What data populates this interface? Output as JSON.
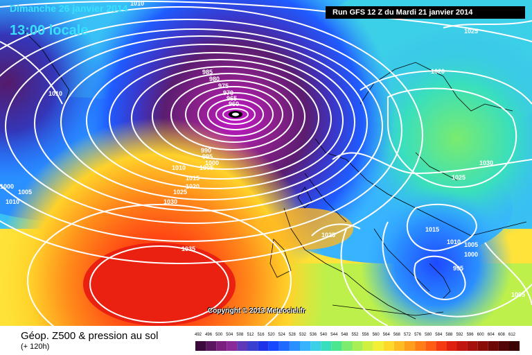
{
  "header": {
    "date_text": "Dimanche 26 janvier 2014",
    "time_text": "13:00 locale",
    "run_text": "Run GFS 12 Z du Mardi 21 janvier 2014"
  },
  "copyright": "Copyright © 2013 Meteociel.fr",
  "legend": {
    "title": "Géop. Z500 & pression au sol",
    "subtitle": "(+ 120h)",
    "scale_values": [
      "492",
      "496",
      "500",
      "504",
      "508",
      "512",
      "516",
      "520",
      "524",
      "528",
      "532",
      "536",
      "540",
      "544",
      "548",
      "552",
      "556",
      "560",
      "564",
      "568",
      "572",
      "576",
      "580",
      "584",
      "588",
      "592",
      "596",
      "600",
      "604",
      "608",
      "612"
    ],
    "scale_colors": [
      "#3b0a3a",
      "#5a1760",
      "#7a207e",
      "#8a2a98",
      "#5f3ab8",
      "#3a3fd0",
      "#1e33e8",
      "#1747ff",
      "#1f6bff",
      "#2a8fff",
      "#38b4ff",
      "#3ccfe8",
      "#39dfbd",
      "#4ae690",
      "#7ceb6e",
      "#a8ef55",
      "#d0f040",
      "#f2ef34",
      "#ffd92a",
      "#ffbb22",
      "#ff9d1c",
      "#ff7e18",
      "#ff5c14",
      "#f53a12",
      "#e0200f",
      "#c2150d",
      "#a6100b",
      "#8a0c09",
      "#6e0807",
      "#540505",
      "#3a0202"
    ]
  },
  "isobars": [
    {
      "label": "1010",
      "color": "#ffffff"
    },
    {
      "label": "1025",
      "color": "#ffffff"
    },
    {
      "label": "1010",
      "color": "#ffffff"
    },
    {
      "label": "985",
      "color": "#ffffff"
    },
    {
      "label": "980",
      "color": "#ffffff"
    },
    {
      "label": "975",
      "color": "#ffffff"
    },
    {
      "label": "970",
      "color": "#ffffff"
    },
    {
      "label": "965",
      "color": "#ffffff"
    },
    {
      "label": "960",
      "color": "#ffffff"
    },
    {
      "label": "990",
      "color": "#ffffff"
    },
    {
      "label": "995",
      "color": "#ffffff"
    },
    {
      "label": "1000",
      "color": "#ffffff"
    },
    {
      "label": "1005",
      "color": "#ffffff"
    },
    {
      "label": "1010",
      "color": "#ffffff"
    },
    {
      "label": "1015",
      "color": "#ffffff"
    },
    {
      "label": "1020",
      "color": "#ffffff"
    },
    {
      "label": "1025",
      "color": "#ffffff"
    },
    {
      "label": "1030",
      "color": "#ffffff"
    },
    {
      "label": "1005",
      "color": "#ffffff"
    },
    {
      "label": "1010",
      "color": "#ffffff"
    },
    {
      "label": "1035",
      "color": "#ffffff"
    },
    {
      "label": "1025",
      "color": "#ffffff"
    },
    {
      "label": "1020",
      "color": "#ffffff"
    },
    {
      "label": "1030",
      "color": "#ffffff"
    },
    {
      "label": "1025",
      "color": "#ffffff"
    },
    {
      "label": "1015",
      "color": "#ffffff"
    },
    {
      "label": "1010",
      "color": "#ffffff"
    },
    {
      "label": "1005",
      "color": "#ffffff"
    },
    {
      "label": "1000",
      "color": "#ffffff"
    },
    {
      "label": "995",
      "color": "#ffffff"
    },
    {
      "label": "1005",
      "color": "#ffffff"
    },
    {
      "label": "1000",
      "color": "#ffffff"
    }
  ]
}
